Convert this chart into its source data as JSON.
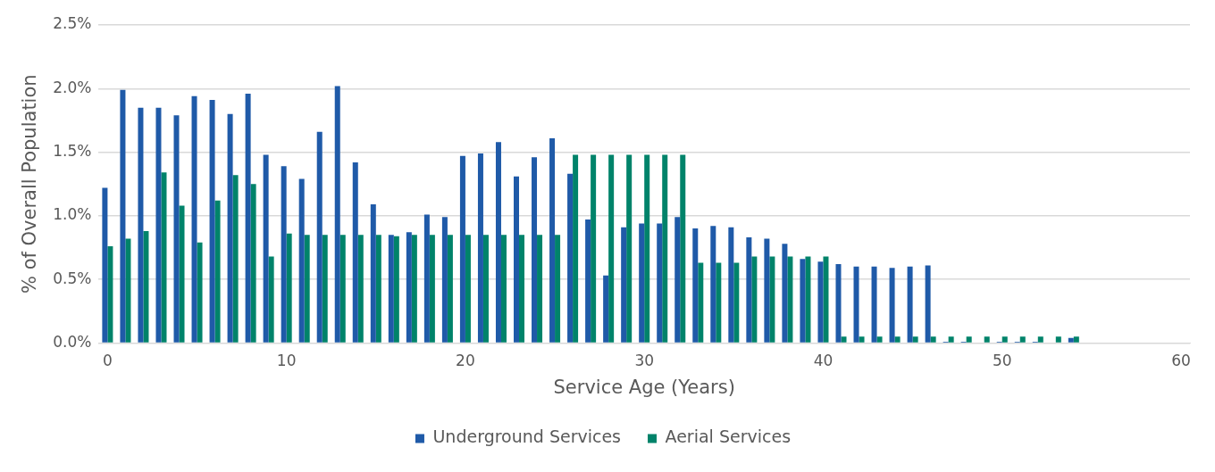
{
  "chart_data": {
    "type": "bar",
    "xlabel": "Service Age (Years)",
    "ylabel": "% of Overall Population",
    "categories": [
      "0",
      null,
      null,
      null,
      null,
      null,
      null,
      null,
      null,
      null,
      "10",
      null,
      null,
      null,
      null,
      null,
      null,
      null,
      null,
      null,
      "20",
      null,
      null,
      null,
      null,
      null,
      null,
      null,
      null,
      null,
      "30",
      null,
      null,
      null,
      null,
      null,
      null,
      null,
      null,
      null,
      "40",
      null,
      null,
      null,
      null,
      null,
      null,
      null,
      null,
      null,
      "50",
      null,
      null,
      null,
      null,
      null,
      null,
      null,
      null,
      null,
      "60"
    ],
    "series": [
      {
        "name": "Underground Services",
        "color": "#1f5aa8",
        "values": [
          1.22,
          1.99,
          1.85,
          1.85,
          1.79,
          1.94,
          1.91,
          1.8,
          1.96,
          1.48,
          1.39,
          1.29,
          1.66,
          2.02,
          1.42,
          1.09,
          0.85,
          0.87,
          1.01,
          0.99,
          1.47,
          1.49,
          1.58,
          1.31,
          1.46,
          1.61,
          1.33,
          0.97,
          0.53,
          0.91,
          0.94,
          0.94,
          0.99,
          0.9,
          0.92,
          0.91,
          0.83,
          0.82,
          0.78,
          0.66,
          0.64,
          0.62,
          0.6,
          0.6,
          0.59,
          0.6,
          0.61,
          0.01,
          0.01,
          0,
          0.01,
          0.01,
          0.01,
          0,
          0.04,
          null,
          null,
          null,
          null,
          null,
          null
        ]
      },
      {
        "name": "Aerial Services",
        "color": "#00836a",
        "values": [
          0.76,
          0.82,
          0.88,
          1.34,
          1.08,
          0.79,
          1.12,
          1.32,
          1.25,
          0.68,
          0.86,
          0.85,
          0.85,
          0.85,
          0.85,
          0.85,
          0.84,
          0.85,
          0.85,
          0.85,
          0.85,
          0.85,
          0.85,
          0.85,
          0.85,
          0.85,
          1.48,
          1.48,
          1.48,
          1.48,
          1.48,
          1.48,
          1.48,
          0.63,
          0.63,
          0.63,
          0.68,
          0.68,
          0.68,
          0.68,
          0.68,
          0.05,
          0.05,
          0.05,
          0.05,
          0.05,
          0.05,
          0.05,
          0.05,
          0.05,
          0.05,
          0.05,
          0.05,
          0.05,
          0.05,
          null,
          null,
          null,
          null,
          null,
          null
        ]
      }
    ],
    "ylim": [
      0,
      2.5
    ],
    "yticks": [
      {
        "value": 0,
        "label": "0.0%"
      },
      {
        "value": 0.5,
        "label": "0.5%"
      },
      {
        "value": 1,
        "label": "1.0%"
      },
      {
        "value": 1.5,
        "label": "1.5%"
      },
      {
        "value": 2,
        "label": "2.0%"
      },
      {
        "value": 2.5,
        "label": "2.5%"
      }
    ],
    "grid": "y",
    "legend": "bottom"
  }
}
